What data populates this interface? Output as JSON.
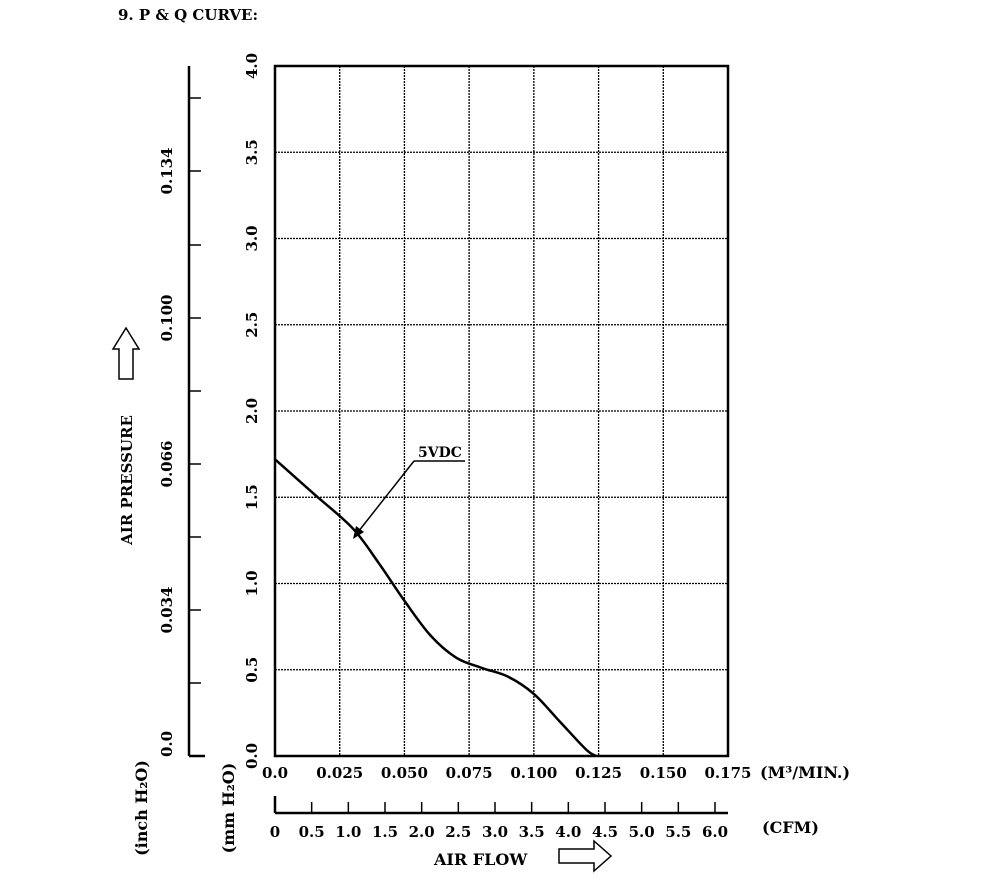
{
  "title": "9. P & Q CURVE:",
  "chart_data": {
    "type": "line",
    "series": [
      {
        "name": "5VDC",
        "x": [
          0.0,
          0.015,
          0.03,
          0.04,
          0.05,
          0.06,
          0.07,
          0.08,
          0.09,
          0.1,
          0.11,
          0.12,
          0.124
        ],
        "y": [
          1.72,
          1.52,
          1.32,
          1.12,
          0.9,
          0.7,
          0.57,
          0.51,
          0.46,
          0.36,
          0.2,
          0.04,
          0.0
        ]
      }
    ],
    "x_unit": "(M³/MIN.)",
    "xlim": [
      0,
      0.175
    ],
    "x_ticks": [
      "0.0",
      "0.025",
      "0.050",
      "0.075",
      "0.100",
      "0.125",
      "0.150",
      "0.175"
    ],
    "x2_label": "AIR FLOW",
    "x2_unit": "(CFM)",
    "x2lim": [
      0,
      6.0
    ],
    "x2_ticks": [
      "0",
      "0.5",
      "1.0",
      "1.5",
      "2.0",
      "2.5",
      "3.0",
      "3.5",
      "4.0",
      "4.5",
      "5.0",
      "5.5",
      "6.0"
    ],
    "y_unit": "(mm H₂O)",
    "ylim": [
      0,
      4.0
    ],
    "y_ticks": [
      "0.0",
      "0.5",
      "1.0",
      "1.5",
      "2.0",
      "2.5",
      "3.0",
      "3.5",
      "4.0"
    ],
    "y2_label": "AIR PRESSURE",
    "y2_unit": "(inch H₂O)",
    "y2_ticks": [
      "0.0",
      "0.034",
      "0.066",
      "0.100",
      "0.134"
    ],
    "grid": true
  },
  "colors": {
    "line": "#000000",
    "grid": "#000000",
    "background": "#ffffff"
  }
}
